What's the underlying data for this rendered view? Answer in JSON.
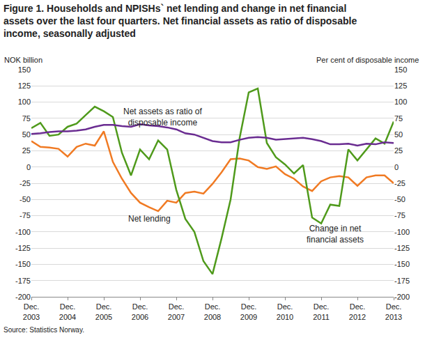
{
  "chart_data": {
    "type": "line",
    "title": "Figure 1. Households and NPISHs` net lending and change in net financial\nassets over the last four quarters. Net financial assets as ratio of disposable\nincome, seasonally adjusted",
    "ylabel": "NOK billion",
    "y2label": "Per cent of disposable income",
    "source": "Source: Statistics Norway.",
    "categories": [
      "Dec.\n2003",
      null,
      null,
      null,
      "Dec.\n2004",
      null,
      null,
      null,
      "Dec.\n2005",
      null,
      null,
      null,
      "Dec.\n2006",
      null,
      null,
      null,
      "Dec.\n2007",
      null,
      null,
      null,
      "Dec.\n2008",
      null,
      null,
      null,
      "Dec.\n2009",
      null,
      null,
      null,
      "Dec.\n2010",
      null,
      null,
      null,
      "Dec.\n2011",
      null,
      null,
      null,
      "Dec.\n2012",
      null,
      null,
      null,
      "Dec.\n2013"
    ],
    "series": [
      {
        "name": "Net assets as ratio of\ndisposable income",
        "color": "#6a2c91",
        "axis": "y2",
        "values": [
          51,
          52,
          54,
          55,
          55,
          56,
          58,
          62,
          65,
          65,
          63,
          62,
          66,
          64,
          63,
          61,
          58,
          52,
          50,
          45,
          40,
          38,
          38,
          42,
          45,
          46,
          45,
          42,
          43,
          44,
          45,
          43,
          40,
          35,
          35,
          36,
          33,
          36,
          35,
          38,
          37
        ]
      },
      {
        "name": "Net lending",
        "color": "#f07a23",
        "values": [
          40,
          31,
          30,
          28,
          16,
          31,
          36,
          33,
          55,
          8,
          -18,
          -40,
          -55,
          -62,
          -68,
          -52,
          -55,
          -40,
          -38,
          -41,
          -26,
          -8,
          12,
          13,
          10,
          0,
          -3,
          1,
          -11,
          -18,
          -30,
          -37,
          -22,
          -16,
          -14,
          -16,
          -29,
          -16,
          -13,
          -13,
          -25
        ]
      },
      {
        "name": "Change in net\nfinancial assets",
        "color": "#4f9a1b",
        "values": [
          60,
          68,
          48,
          50,
          62,
          67,
          80,
          93,
          86,
          77,
          22,
          -13,
          27,
          12,
          41,
          27,
          -35,
          -80,
          -100,
          -145,
          -165,
          -110,
          -50,
          45,
          115,
          121,
          37,
          15,
          4,
          -10,
          3,
          -78,
          -87,
          -58,
          -60,
          27,
          10,
          27,
          44,
          36,
          70
        ]
      }
    ],
    "ylim": [
      -200,
      150
    ],
    "yticks": [
      -200,
      -175,
      -150,
      -125,
      -100,
      -75,
      -50,
      -25,
      0,
      25,
      50,
      75,
      100,
      125,
      150
    ],
    "y2lim": [
      -200,
      150
    ],
    "y2ticks": [
      -200,
      -175,
      -150,
      -125,
      -100,
      -75,
      -50,
      -25,
      0,
      25,
      50,
      75,
      100,
      125,
      150
    ],
    "grid": true
  }
}
